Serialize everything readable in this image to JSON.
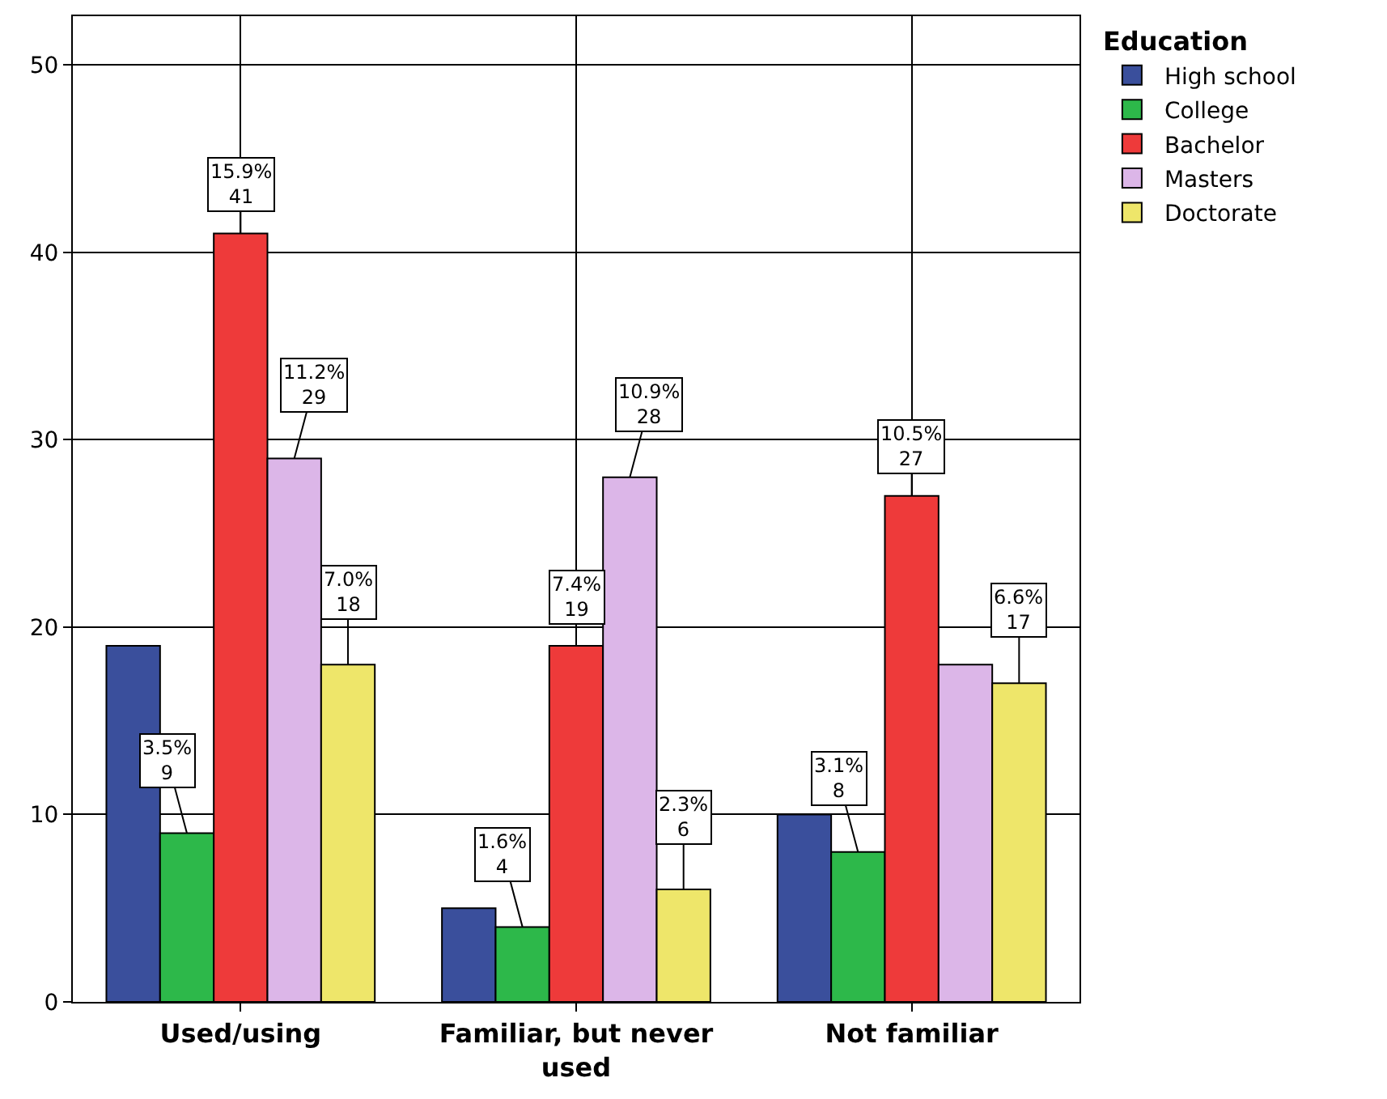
{
  "chart_data": {
    "type": "bar",
    "categories": [
      "Used/using",
      "Familiar, but never used",
      "Not familiar"
    ],
    "legend_title": "Education",
    "series": [
      {
        "name": "High school",
        "color": "#3a4f9c",
        "values": [
          19,
          5,
          10
        ],
        "value_labels": [
          null,
          null,
          null
        ]
      },
      {
        "name": "College",
        "color": "#2db84a",
        "values": [
          9,
          4,
          8
        ],
        "value_labels": [
          "3.5%\n9",
          "1.6%\n4",
          "3.1%\n8"
        ]
      },
      {
        "name": "Bachelor",
        "color": "#ee3a3a",
        "values": [
          41,
          19,
          27
        ],
        "value_labels": [
          "15.9%\n41",
          "7.4%\n19",
          "10.5%\n27"
        ]
      },
      {
        "name": "Masters",
        "color": "#dcb6e8",
        "values": [
          29,
          28,
          18
        ],
        "value_labels": [
          "11.2%\n29",
          "10.9%\n28",
          null
        ]
      },
      {
        "name": "Doctorate",
        "color": "#eee66a",
        "values": [
          18,
          6,
          17
        ],
        "value_labels": [
          "7.0%\n18",
          "2.3%\n6",
          "6.6%\n17"
        ]
      }
    ],
    "ylim": [
      0,
      52.6
    ],
    "yticks": [
      0,
      10,
      20,
      30,
      40,
      50
    ],
    "grid": true,
    "legend": "top right"
  }
}
